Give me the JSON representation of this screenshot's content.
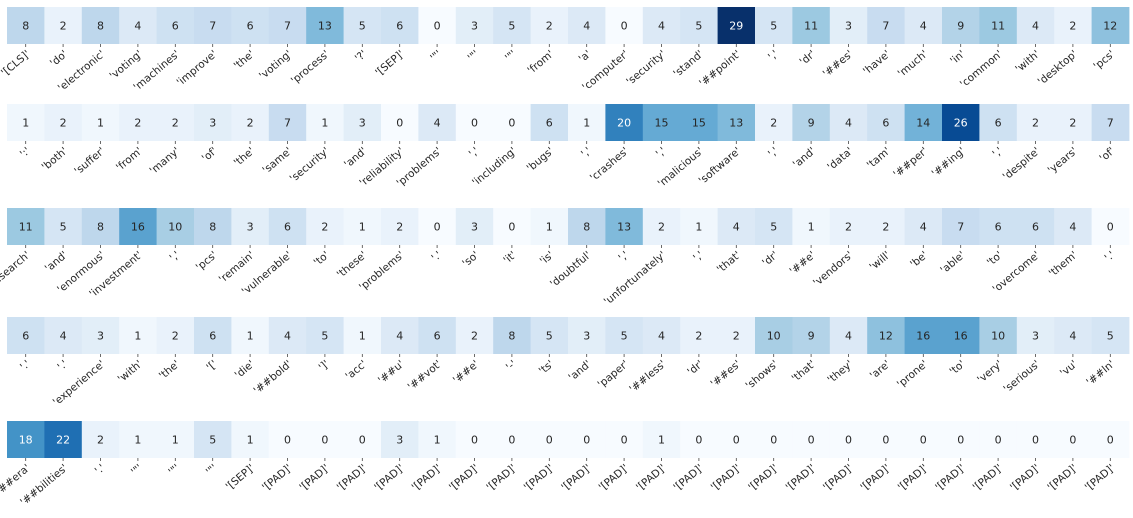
{
  "chart_data": {
    "type": "heatmap",
    "colormap": "Blues",
    "value_range": [
      0,
      29
    ],
    "rows": [
      {
        "tokens": [
          "[CLS]",
          "do",
          "electronic",
          "voting",
          "machines",
          "improve",
          "the",
          "voting",
          "process",
          "?",
          "[SEP]",
          "\"",
          "\"",
          "\"",
          "from",
          "a",
          "computer",
          "security",
          "stand",
          "##point",
          ",",
          "dr",
          "##es",
          "have",
          "much",
          "in",
          "common",
          "with",
          "desktop",
          "pcs"
        ],
        "values": [
          8,
          2,
          8,
          4,
          6,
          7,
          6,
          7,
          13,
          5,
          6,
          0,
          3,
          5,
          2,
          4,
          0,
          4,
          5,
          29,
          5,
          11,
          3,
          7,
          4,
          9,
          11,
          4,
          2,
          12
        ]
      },
      {
        "tokens": [
          ":",
          "both",
          "suffer",
          "from",
          "many",
          "of",
          "the",
          "same",
          "security",
          "and",
          "reliability",
          "problems",
          ",",
          "including",
          "bugs",
          ",",
          "crashes",
          ",",
          "malicious",
          "software",
          ",",
          "and",
          "data",
          "tam",
          "##per",
          "##ing",
          ",",
          "despite",
          "years",
          "of"
        ],
        "values": [
          1,
          2,
          1,
          2,
          2,
          3,
          2,
          7,
          1,
          3,
          0,
          4,
          0,
          0,
          6,
          1,
          20,
          15,
          15,
          13,
          2,
          9,
          4,
          6,
          14,
          26,
          6,
          2,
          2,
          7
        ]
      },
      {
        "tokens": [
          "research",
          "and",
          "enormous",
          "investment",
          ",",
          "pcs",
          "remain",
          "vulnerable",
          "to",
          "these",
          "problems",
          ".",
          "so",
          "it",
          "is",
          "doubtful",
          ",",
          "unfortunately",
          ",",
          "that",
          "dr",
          "##e",
          "vendors",
          "will",
          "be",
          "able",
          "to",
          "overcome",
          "them",
          "."
        ],
        "values": [
          11,
          5,
          8,
          16,
          10,
          8,
          3,
          6,
          2,
          1,
          2,
          0,
          3,
          0,
          1,
          8,
          13,
          2,
          1,
          4,
          5,
          1,
          2,
          2,
          4,
          7,
          6,
          6,
          4,
          0
        ]
      },
      {
        "tokens": [
          ".",
          ".",
          "experience",
          "with",
          "the",
          "[",
          "die",
          "##bold",
          "]",
          "acc",
          "##u",
          "##vot",
          "##e",
          "-",
          "ts",
          "and",
          "paper",
          "##less",
          "dr",
          "##es",
          "shows",
          "that",
          "they",
          "are",
          "prone",
          "to",
          "very",
          "serious",
          "vu",
          "##ln"
        ],
        "values": [
          6,
          4,
          3,
          1,
          2,
          6,
          1,
          4,
          5,
          1,
          4,
          6,
          2,
          8,
          5,
          3,
          5,
          4,
          2,
          2,
          10,
          9,
          4,
          12,
          16,
          16,
          10,
          3,
          4,
          5
        ]
      },
      {
        "tokens": [
          "##era",
          "##bilities",
          ".",
          "\"",
          "\"",
          "\"",
          "[SEP]",
          "[PAD]",
          "[PAD]",
          "[PAD]",
          "[PAD]",
          "[PAD]",
          "[PAD]",
          "[PAD]",
          "[PAD]",
          "[PAD]",
          "[PAD]",
          "[PAD]",
          "[PAD]",
          "[PAD]",
          "[PAD]",
          "[PAD]",
          "[PAD]",
          "[PAD]",
          "[PAD]",
          "[PAD]",
          "[PAD]",
          "[PAD]",
          "[PAD]",
          "[PAD]"
        ],
        "values": [
          18,
          22,
          2,
          1,
          1,
          5,
          1,
          0,
          0,
          0,
          3,
          1,
          0,
          0,
          0,
          0,
          0,
          1,
          0,
          0,
          0,
          0,
          0,
          0,
          0,
          0,
          0,
          0,
          0,
          0
        ]
      }
    ]
  }
}
